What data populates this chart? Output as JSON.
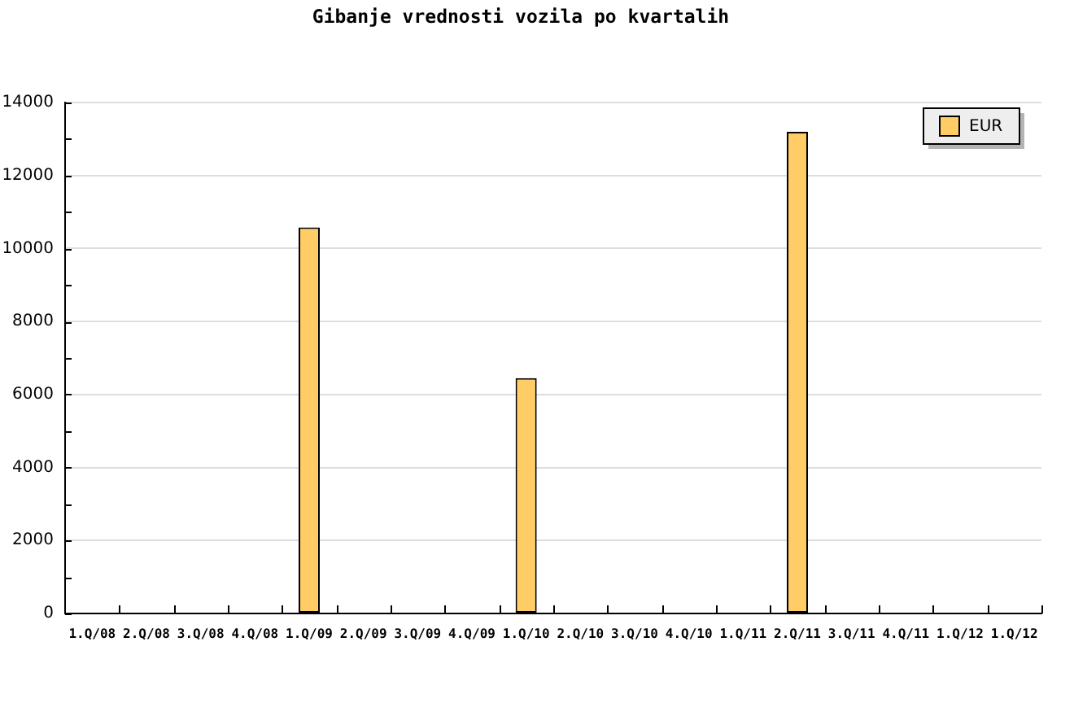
{
  "chart_data": {
    "type": "bar",
    "title": "Gibanje vrednosti vozila po kvartalih",
    "categories": [
      "1.Q/08",
      "2.Q/08",
      "3.Q/08",
      "4.Q/08",
      "1.Q/09",
      "2.Q/09",
      "3.Q/09",
      "4.Q/09",
      "1.Q/10",
      "2.Q/10",
      "3.Q/10",
      "4.Q/10",
      "1.Q/11",
      "2.Q/11",
      "3.Q/11",
      "4.Q/11",
      "1.Q/12",
      "1.Q/12"
    ],
    "series": [
      {
        "name": "EUR",
        "color": "#ffcc66",
        "values": [
          null,
          null,
          null,
          null,
          10580,
          null,
          null,
          null,
          6450,
          null,
          null,
          null,
          null,
          13200,
          null,
          null,
          null,
          null
        ]
      }
    ],
    "ylim": [
      0,
      14000
    ],
    "yticks": [
      0,
      {
        "value": 1000,
        "label": null
      },
      2000,
      {
        "value": 3000,
        "label": null
      },
      4000,
      {
        "value": 5000,
        "label": null
      },
      6000,
      {
        "value": 7000,
        "label": null
      },
      8000,
      {
        "value": 9000,
        "label": null
      },
      10000,
      {
        "value": 11000,
        "label": null
      },
      12000,
      {
        "value": 13000,
        "label": null
      },
      14000
    ],
    "grid": "y",
    "legend": "top right"
  }
}
